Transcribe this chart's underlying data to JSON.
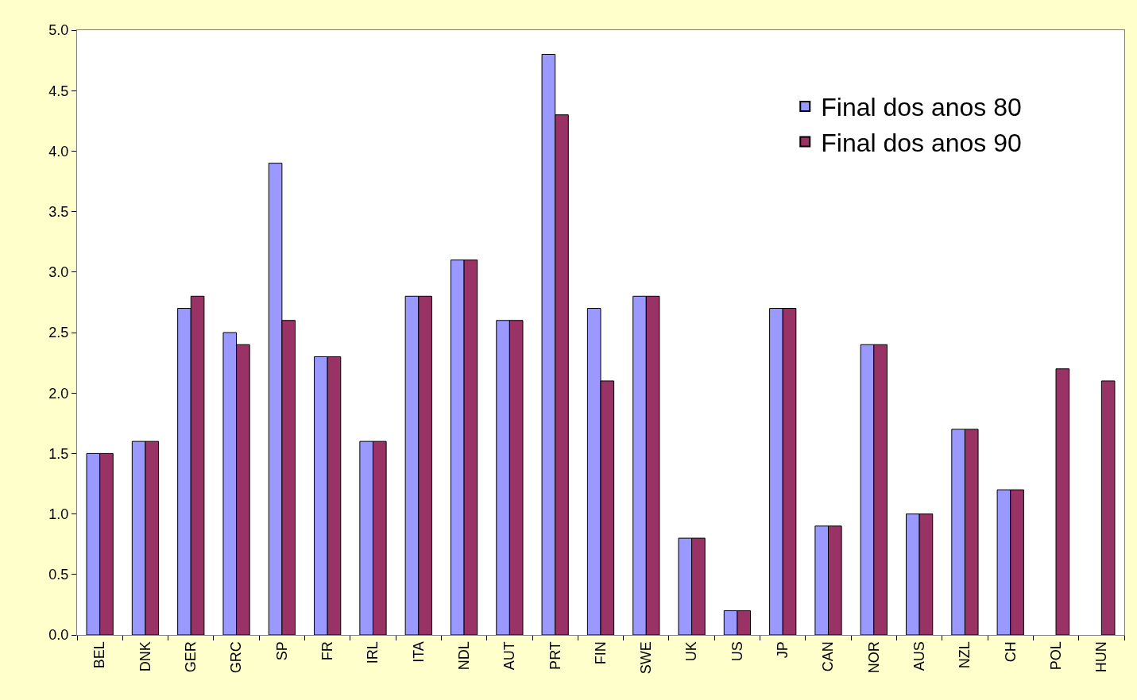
{
  "chart_data": {
    "type": "bar",
    "categories": [
      "BEL",
      "DNK",
      "GER",
      "GRC",
      "SP",
      "FR",
      "IRL",
      "ITA",
      "NDL",
      "AUT",
      "PRT",
      "FIN",
      "SWE",
      "UK",
      "US",
      "JP",
      "CAN",
      "NOR",
      "AUS",
      "NZL",
      "CH",
      "POL",
      "HUN"
    ],
    "series": [
      {
        "name": "Final dos anos 80",
        "color": "#9999ff",
        "values": [
          1.5,
          1.6,
          2.7,
          2.5,
          3.9,
          2.3,
          1.6,
          2.8,
          3.1,
          2.6,
          4.8,
          2.7,
          2.8,
          0.8,
          0.2,
          2.7,
          0.9,
          2.4,
          1.0,
          1.7,
          1.2,
          null,
          null
        ]
      },
      {
        "name": "Final dos anos 90",
        "color": "#993366",
        "values": [
          1.5,
          1.6,
          2.8,
          2.4,
          2.6,
          2.3,
          1.6,
          2.8,
          3.1,
          2.6,
          4.3,
          2.1,
          2.8,
          0.8,
          0.2,
          2.7,
          0.9,
          2.4,
          1.0,
          1.7,
          1.2,
          2.2,
          2.1
        ]
      }
    ],
    "ylim": [
      0,
      5
    ],
    "yticks": [
      {
        "value": 0,
        "label": "0.0"
      },
      {
        "value": 0.5,
        "label": "0.5"
      },
      {
        "value": 1,
        "label": "1.0"
      },
      {
        "value": 1.5,
        "label": "1.5"
      },
      {
        "value": 2,
        "label": "2.0"
      },
      {
        "value": 2.5,
        "label": "2.5"
      },
      {
        "value": 3,
        "label": "3.0"
      },
      {
        "value": 3.5,
        "label": "3.5"
      },
      {
        "value": 4,
        "label": "4.0"
      },
      {
        "value": 4.5,
        "label": "4.5"
      },
      {
        "value": 5,
        "label": "5.0"
      }
    ],
    "legend": "top right"
  }
}
